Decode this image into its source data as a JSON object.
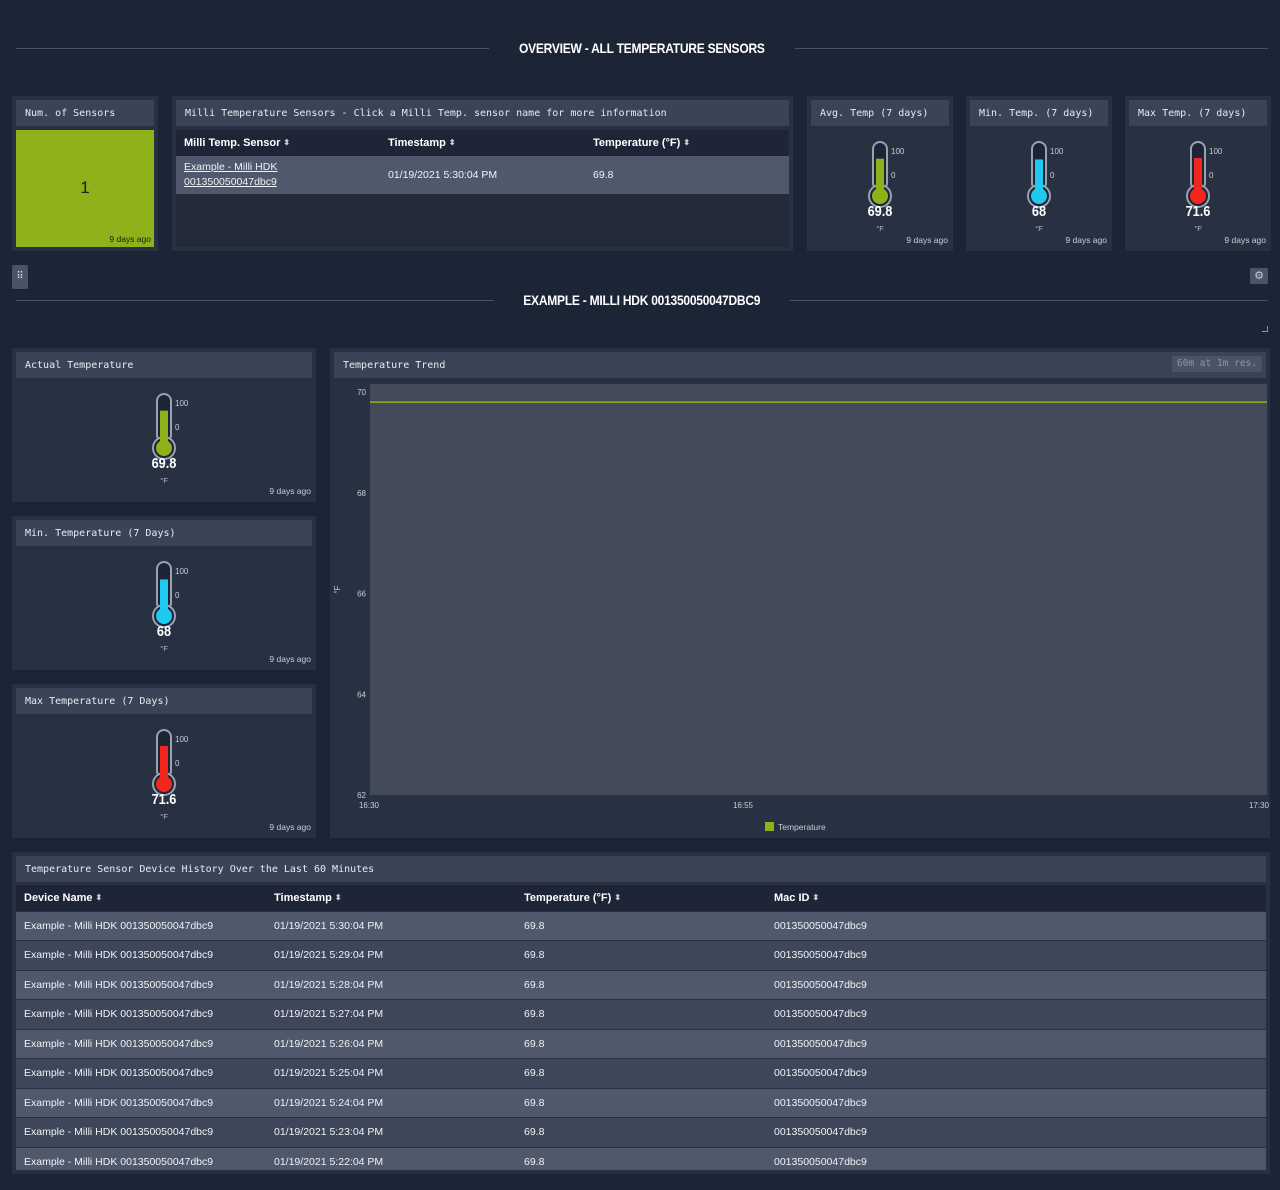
{
  "overview": {
    "title": "OVERVIEW - ALL TEMPERATURE SENSORS",
    "num_sensors": {
      "title": "Num. of Sensors",
      "value": "1",
      "ago": "9 days ago",
      "color": "#8fb21b"
    },
    "sensors_table": {
      "title": "Milli Temperature Sensors - Click a Milli Temp. sensor name for more information",
      "headers": [
        "Milli Temp. Sensor",
        "Timestamp",
        "Temperature (°F)"
      ],
      "row": {
        "sensor_line1": "Example - Milli HDK",
        "sensor_line2": "001350050047dbc9",
        "timestamp": "01/19/2021 5:30:04 PM",
        "temperature": "69.8"
      }
    },
    "avg_temp": {
      "title": "Avg. Temp (7 days)",
      "value": "69.8",
      "unit": "°F",
      "max": "100",
      "min": "0",
      "ago": "9 days ago",
      "color": "#8fb21b"
    },
    "min_temp": {
      "title": "Min. Temp. (7 days)",
      "value": "68",
      "unit": "°F",
      "max": "100",
      "min": "0",
      "ago": "9 days ago",
      "color": "#1fc9f0"
    },
    "max_temp": {
      "title": "Max Temp. (7 days)",
      "value": "71.6",
      "unit": "°F",
      "max": "100",
      "min": "0",
      "ago": "9 days ago",
      "color": "#f2261e"
    }
  },
  "device": {
    "title": "EXAMPLE - MILLI HDK 001350050047DBC9",
    "actual": {
      "title": "Actual Temperature",
      "value": "69.8",
      "unit": "°F",
      "max": "100",
      "min": "0",
      "ago": "9 days ago",
      "color": "#8fb21b"
    },
    "min7": {
      "title": "Min. Temperature (7 Days)",
      "value": "68",
      "unit": "°F",
      "max": "100",
      "min": "0",
      "ago": "9 days ago",
      "color": "#1fc9f0"
    },
    "max7": {
      "title": "Max Temperature (7 Days)",
      "value": "71.6",
      "unit": "°F",
      "max": "100",
      "min": "0",
      "ago": "9 days ago",
      "color": "#f2261e"
    },
    "trend": {
      "title": "Temperature Trend",
      "resolution": "60m at 1m res."
    }
  },
  "chart_data": {
    "type": "line",
    "title": "Temperature Trend",
    "ylabel": "°F",
    "ylim": [
      62,
      70
    ],
    "yticks": [
      "70",
      "68",
      "66",
      "64",
      "62"
    ],
    "xticks": [
      "16:30",
      "16:55",
      "17:30"
    ],
    "series": [
      {
        "name": "Temperature",
        "color": "#8fb21b",
        "x": [
          "16:30",
          "17:30"
        ],
        "values": [
          69.8,
          69.8
        ]
      }
    ],
    "legend_position": "bottom"
  },
  "history": {
    "title": "Temperature Sensor Device History Over the Last 60 Minutes",
    "headers": [
      "Device Name",
      "Timestamp",
      "Temperature (°F)",
      "Mac ID"
    ],
    "rows": [
      [
        "Example - Milli HDK 001350050047dbc9",
        "01/19/2021 5:30:04 PM",
        "69.8",
        "001350050047dbc9"
      ],
      [
        "Example - Milli HDK 001350050047dbc9",
        "01/19/2021 5:29:04 PM",
        "69.8",
        "001350050047dbc9"
      ],
      [
        "Example - Milli HDK 001350050047dbc9",
        "01/19/2021 5:28:04 PM",
        "69.8",
        "001350050047dbc9"
      ],
      [
        "Example - Milli HDK 001350050047dbc9",
        "01/19/2021 5:27:04 PM",
        "69.8",
        "001350050047dbc9"
      ],
      [
        "Example - Milli HDK 001350050047dbc9",
        "01/19/2021 5:26:04 PM",
        "69.8",
        "001350050047dbc9"
      ],
      [
        "Example - Milli HDK 001350050047dbc9",
        "01/19/2021 5:25:04 PM",
        "69.8",
        "001350050047dbc9"
      ],
      [
        "Example - Milli HDK 001350050047dbc9",
        "01/19/2021 5:24:04 PM",
        "69.8",
        "001350050047dbc9"
      ],
      [
        "Example - Milli HDK 001350050047dbc9",
        "01/19/2021 5:23:04 PM",
        "69.8",
        "001350050047dbc9"
      ],
      [
        "Example - Milli HDK 001350050047dbc9",
        "01/19/2021 5:22:04 PM",
        "69.8",
        "001350050047dbc9"
      ]
    ]
  },
  "icons": {
    "drag": "drag-handle-icon",
    "settings": "gear-icon",
    "resize": "resize-corner-icon",
    "sort": "sort-icon"
  }
}
